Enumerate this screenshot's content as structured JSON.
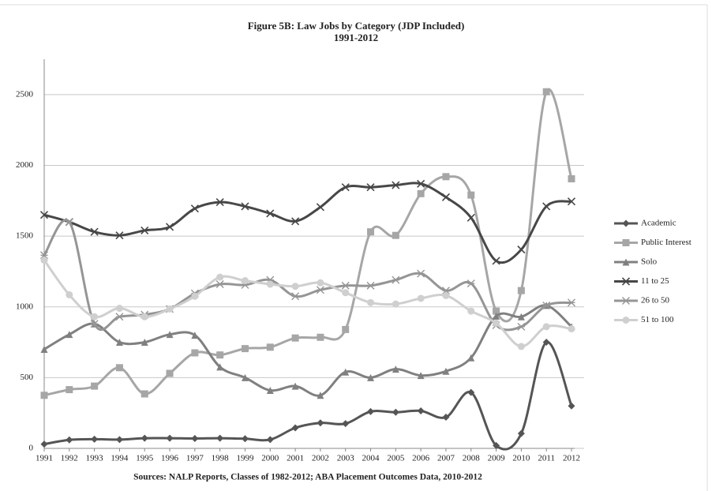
{
  "chart_data": {
    "type": "line",
    "title": "Figure 5B: Law Jobs by Category (JDP Included)",
    "subtitle": "1991-2012",
    "source": "Sources: NALP Reports, Classes of 1982-2012; ABA Placement Outcomes Data, 2010-2012",
    "categories": [
      "1991",
      "1992",
      "1993",
      "1994",
      "1995",
      "1996",
      "1997",
      "1998",
      "1999",
      "2000",
      "2001",
      "2002",
      "2003",
      "2004",
      "2005",
      "2006",
      "2007",
      "2008",
      "2009",
      "2010",
      "2011",
      "2012"
    ],
    "ylim": [
      0,
      2750
    ],
    "yticks": [
      0,
      500,
      1000,
      1500,
      2000,
      2500
    ],
    "grid": true,
    "smooth": true,
    "legend": "right",
    "series": [
      {
        "name": "Academic",
        "color": "#555555",
        "marker": "diamond",
        "values": [
          30,
          60,
          65,
          62,
          72,
          72,
          70,
          72,
          68,
          62,
          145,
          180,
          175,
          260,
          255,
          265,
          220,
          395,
          20,
          105,
          750,
          300
        ]
      },
      {
        "name": "Public Interest",
        "color": "#a6a6a6",
        "marker": "square",
        "values": [
          375,
          415,
          440,
          570,
          385,
          530,
          675,
          660,
          705,
          715,
          780,
          785,
          840,
          1530,
          1505,
          1800,
          1920,
          1790,
          970,
          1115,
          2520,
          1905
        ]
      },
      {
        "name": "Solo",
        "color": "#808080",
        "marker": "triangle",
        "values": [
          700,
          805,
          880,
          750,
          750,
          805,
          800,
          575,
          500,
          410,
          440,
          375,
          540,
          500,
          560,
          515,
          545,
          640,
          935,
          930,
          1010,
          860
        ]
      },
      {
        "name": "11 to 25",
        "color": "#474747",
        "marker": "x",
        "values": [
          1650,
          1600,
          1530,
          1505,
          1540,
          1565,
          1695,
          1740,
          1710,
          1660,
          1605,
          1705,
          1845,
          1845,
          1860,
          1870,
          1775,
          1630,
          1325,
          1405,
          1710,
          1745
        ]
      },
      {
        "name": "26 to 50",
        "color": "#959595",
        "marker": "star",
        "values": [
          1365,
          1600,
          880,
          930,
          945,
          985,
          1095,
          1160,
          1155,
          1190,
          1075,
          1120,
          1150,
          1150,
          1190,
          1235,
          1115,
          1165,
          870,
          860,
          1010,
          1030
        ]
      },
      {
        "name": "51 to 100",
        "color": "#cfcfcf",
        "marker": "circle",
        "values": [
          1330,
          1085,
          930,
          990,
          930,
          985,
          1075,
          1210,
          1185,
          1160,
          1145,
          1170,
          1100,
          1030,
          1020,
          1060,
          1080,
          970,
          885,
          720,
          860,
          845
        ]
      }
    ]
  }
}
